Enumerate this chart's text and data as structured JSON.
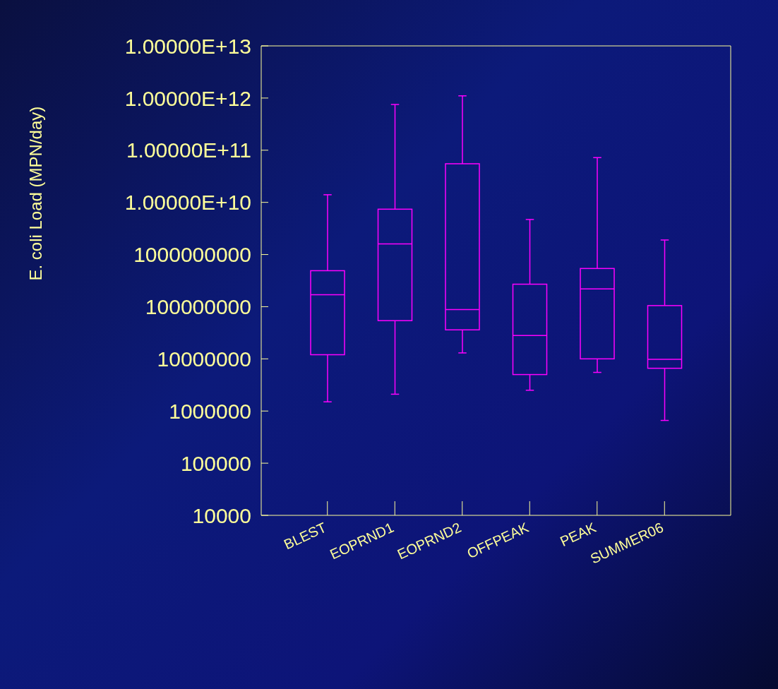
{
  "chart_data": {
    "type": "box",
    "ylabel": "E. coli Load (MPN/day)",
    "log": "y",
    "categories": [
      "BLEST",
      "EOPRND1",
      "EOPRND2",
      "OFFPEAK",
      "PEAK",
      "SUMMER06"
    ],
    "series": [
      {
        "color": "#ff00ff",
        "boxes": [
          {
            "low": 1500000.0,
            "q1": 12000000.0,
            "median": 170000000.0,
            "q3": 490000000.0,
            "high": 14000000000.0
          },
          {
            "low": 2100000.0,
            "q1": 54000000.0,
            "median": 1600000000.0,
            "q3": 7400000000.0,
            "high": 750000000000.0
          },
          {
            "low": 13000000.0,
            "q1": 36000000.0,
            "median": 88000000.0,
            "q3": 55000000000.0,
            "high": 1100000000000.0
          },
          {
            "low": 2500000.0,
            "q1": 5000000.0,
            "median": 28000000.0,
            "q3": 270000000.0,
            "high": 4700000000.0
          },
          {
            "low": 5500000.0,
            "q1": 10000000.0,
            "median": 220000000.0,
            "q3": 540000000.0,
            "high": 72000000000.0
          },
          {
            "low": 660000.0,
            "q1": 6600000.0,
            "median": 9800000.0,
            "q3": 105000000.0,
            "high": 1900000000.0
          }
        ]
      }
    ],
    "ylim": [
      10000,
      10000000000000.0
    ],
    "yticks": [
      10000,
      100000,
      1000000,
      10000000,
      100000000,
      1000000000,
      {
        "value": 10000000000.0,
        "label": "1.00000E+10"
      },
      {
        "value": 100000000000.0,
        "label": "1.00000E+11"
      },
      {
        "value": 1000000000000.0,
        "label": "1.00000E+12"
      },
      {
        "value": 10000000000000.0,
        "label": "1.00000E+13"
      }
    ]
  }
}
